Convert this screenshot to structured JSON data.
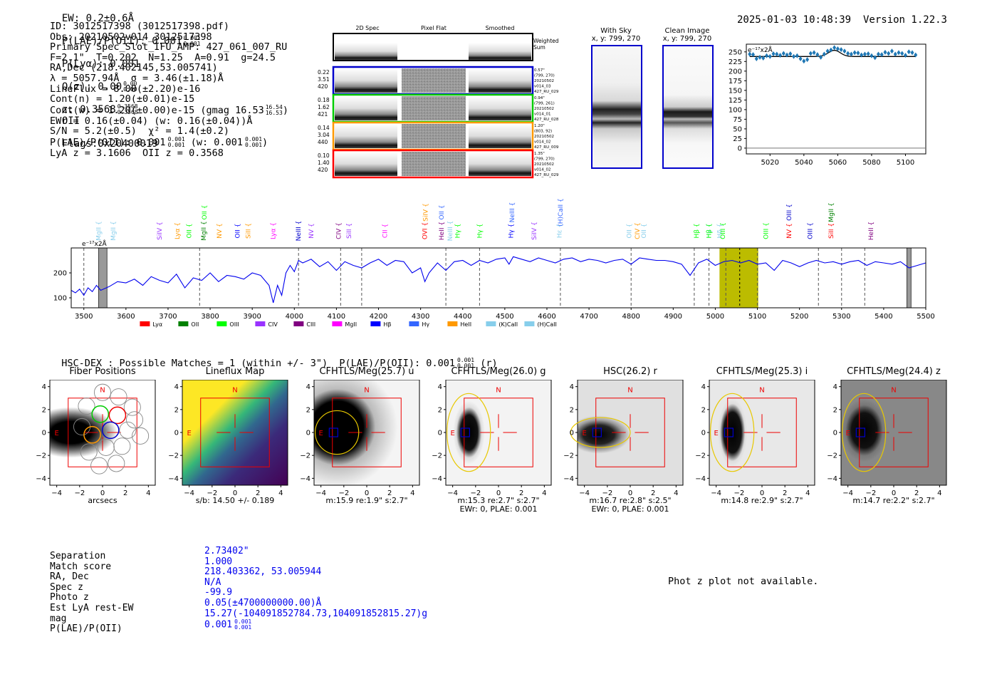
{
  "header": {
    "ew": "EW: 0.2±0.6Å",
    "plae": "P(LAE)/P(OII): 0.001",
    "plae_sup": "0.001",
    "plae_sub": "0.001",
    "plya": "P(Lyα): 0.001",
    "qz": "Q(z): 0.00",
    "qz_sup": "0.00",
    "qz_sub": "0.00",
    "z": "z: 0.3568",
    "z_sup": "0.3568",
    "z_sub": "0.3568",
    "z_line": "OII",
    "flags": "Flags:0x20400019",
    "datetime": "2025-01-03 10:48:39",
    "version": "Version 1.22.3"
  },
  "info": {
    "lines": [
      "ID: 3012517398 (3012517398.pdf)",
      "Obs: 20210502v014_3012517398",
      "Primary Spec_Slot_IFU_AMP: 427_061_007_RU",
      "F=2.1\"  T=0.202  N=1.25  A=0.91  g=24.5",
      "RA,Dec (218.402145,53.005741)",
      "λ = 5057.94Å  σ = 3.46(±1.18)Å",
      "LineFlux = 8.00(±2.20)e-16",
      "Cont(n) = 1.20(±0.01)e-15",
      "Cont(w) = 1.20(±0.00)e-15 (gmag 16.53",
      "EWr = 0.16(±0.04) (w: 0.16(±0.04))Å",
      "S/N = 5.2(±0.5)  χ² = 1.4(±0.2)",
      "P(LAE)/P(OII): 0.001",
      "LyA z = 3.1606  OII z = 0.3568"
    ],
    "gmag_sup": "16.54",
    "gmag_sub": "16.53",
    "plae_sup": "0.001",
    "plae_sub": "0.001",
    "plae_w": "(w: 0.001",
    "plae_w_sup": "0.001",
    "plae_w_sub": "0.001"
  },
  "spec2d": {
    "col_labels": [
      "2D Spec",
      "Pixel Flat",
      "Smoothed"
    ],
    "weighted_label": "Weighted\nSum",
    "fibers": [
      {
        "color": "#0000cc",
        "left": [
          "0.22",
          "3.51",
          "420"
        ],
        "right": [
          "0.57\"",
          "(799, 270)",
          "20210502",
          "v014_03",
          "427_RU_029"
        ]
      },
      {
        "color": "#00cc00",
        "left": [
          "0.18",
          "1.62",
          "421"
        ],
        "right": [
          "0.94\"",
          "(799, 261)",
          "20210502",
          "v014_01",
          "427_RU_028"
        ]
      },
      {
        "color": "#ff9900",
        "left": [
          "0.14",
          "3.04",
          "440"
        ],
        "right": [
          "1.20\"",
          "(803, 92)",
          "20210502",
          "v014_02",
          "427_RU_009"
        ]
      },
      {
        "color": "#ff0000",
        "left": [
          "0.10",
          "1.40",
          "420"
        ],
        "right": [
          "1.35\"",
          "(799, 270)",
          "20210502",
          "v014_02",
          "427_RU_029"
        ]
      }
    ]
  },
  "sky": {
    "with_sky": "With Sky",
    "with_sky_xy": "x, y: 799, 270",
    "clean": "Clean Image",
    "clean_xy": "x, y: 799, 270"
  },
  "zoom_chart": {
    "unit_label": "e⁻¹⁷x2Å",
    "x_ticks": [
      "5020",
      "5040",
      "5060",
      "5080",
      "5100"
    ],
    "y_ticks": [
      "0",
      "25",
      "50",
      "75",
      "100",
      "125",
      "150",
      "175",
      "200",
      "225",
      "250"
    ]
  },
  "full_spectrum": {
    "unit_label": "e⁻¹⁷x2Å",
    "x_ticks": [
      "3500",
      "3600",
      "3700",
      "3800",
      "3900",
      "4000",
      "4100",
      "4200",
      "4300",
      "4400",
      "4500",
      "4600",
      "4700",
      "4800",
      "4900",
      "5000",
      "5100",
      "5200",
      "5300",
      "5400",
      "5500"
    ],
    "y_ticks": [
      "100",
      "200"
    ],
    "legend": [
      {
        "label": "Lyα",
        "color": "#ff0000"
      },
      {
        "label": "OII",
        "color": "#008000"
      },
      {
        "label": "OIII",
        "color": "#00ff00"
      },
      {
        "label": "CIV",
        "color": "#9933ff"
      },
      {
        "label": "CIII",
        "color": "#800080"
      },
      {
        "label": "MgII",
        "color": "#ff00ff"
      },
      {
        "label": "Hβ",
        "color": "#0000ff"
      },
      {
        "label": "Hγ",
        "color": "#3366ff"
      },
      {
        "label": "HeII",
        "color": "#ff9900"
      },
      {
        "label": "(K)CaII",
        "color": "#87ceeb"
      },
      {
        "label": "(H)CaII",
        "color": "#87ceeb"
      }
    ],
    "line_labels": [
      {
        "t": "MgII",
        "c": "#87ceeb",
        "w": 3535
      },
      {
        "t": "MgII",
        "c": "#87ceeb",
        "w": 3570
      },
      {
        "t": "SiIV",
        "c": "#9933ff",
        "w": 3680
      },
      {
        "t": "Lyα",
        "c": "#ff9900",
        "w": 3722
      },
      {
        "t": "OII",
        "c": "#00ff00",
        "w": 3750
      },
      {
        "t": "MgII",
        "c": "#008000",
        "w": 3785
      },
      {
        "t": "OII",
        "c": "#00ff00",
        "w": 3786,
        "hi": true
      },
      {
        "t": "NV",
        "c": "#ff9900",
        "w": 3822
      },
      {
        "t": "OII",
        "c": "#0000ff",
        "w": 3865
      },
      {
        "t": "SiII",
        "c": "#ff9900",
        "w": 3890
      },
      {
        "t": "Lyα",
        "c": "#ff00ff",
        "w": 3950
      },
      {
        "t": "NeIII",
        "c": "#0000cc",
        "w": 4010
      },
      {
        "t": "NV",
        "c": "#9933ff",
        "w": 4040
      },
      {
        "t": "CIV",
        "c": "#800080",
        "w": 4105
      },
      {
        "t": "SiII",
        "c": "#9933ff",
        "w": 4130
      },
      {
        "t": "CII",
        "c": "#ff00ff",
        "w": 4215
      },
      {
        "t": "OVI",
        "c": "#ff0000",
        "w": 4310
      },
      {
        "t": "SiIV",
        "c": "#ff9900",
        "w": 4312,
        "hi": true
      },
      {
        "t": "OII",
        "c": "#3366ff",
        "w": 4350,
        "hi": true
      },
      {
        "t": "HeII",
        "c": "#800080",
        "w": 4350
      },
      {
        "t": "NeIII",
        "c": "#87ceeb",
        "w": 4370
      },
      {
        "t": "Hγ",
        "c": "#00ff00",
        "w": 4388
      },
      {
        "t": "Hγ",
        "c": "#00ff00",
        "w": 4440
      },
      {
        "t": "Hγ",
        "c": "#0000ff",
        "w": 4515
      },
      {
        "t": "NeIII",
        "c": "#3366ff",
        "w": 4517,
        "hi": true
      },
      {
        "t": "SiIV",
        "c": "#9933ff",
        "w": 4570
      },
      {
        "t": "Hε",
        "c": "#87ceeb",
        "w": 4630
      },
      {
        "t": "(H)CaII",
        "c": "#3366ff",
        "w": 4632,
        "hi": true
      },
      {
        "t": "OII",
        "c": "#87ceeb",
        "w": 4795
      },
      {
        "t": "CIV",
        "c": "#ff9900",
        "w": 4815
      },
      {
        "t": "OII",
        "c": "#87ceeb",
        "w": 4830
      },
      {
        "t": "Hβ",
        "c": "#00ff00",
        "w": 4955
      },
      {
        "t": "Hγ",
        "c": "#87ceeb",
        "w": 4985
      },
      {
        "t": "Hβ",
        "c": "#00ff00",
        "w": 4985
      },
      {
        "t": "Hδ",
        "c": "#87ceeb",
        "w": 5010
      },
      {
        "t": "OIII",
        "c": "#00ff00",
        "w": 5018
      },
      {
        "t": "OIII",
        "c": "#00ff00",
        "w": 5120
      },
      {
        "t": "NV",
        "c": "#ff0000",
        "w": 5175
      },
      {
        "t": "OIII",
        "c": "#0000cc",
        "w": 5175,
        "hi": true
      },
      {
        "t": "OIII",
        "c": "#0000cc",
        "w": 5225
      },
      {
        "t": "SiII",
        "c": "#ff0000",
        "w": 5275
      },
      {
        "t": "MgII",
        "c": "#008000",
        "w": 5275,
        "hi": true
      },
      {
        "t": "HeII",
        "c": "#800080",
        "w": 5370
      }
    ]
  },
  "hsc": {
    "title": "HSC-DEX : Possible Matches = 1 (within +/- 3\")  P(LAE)/P(OII): 0.001",
    "title_sup": "0.001",
    "title_sub": "0.001",
    "title_end": "(r)"
  },
  "cutouts": [
    {
      "title": "Fiber Positions",
      "cap1": "arcsecs",
      "cap2": ""
    },
    {
      "title": "Lineflux Map",
      "cap1": "s/b: 14.50 +/- 0.189",
      "cap2": ""
    },
    {
      "title": "CFHTLS/Meg(25.7) u",
      "cap1": "m:15.9  re:1.9\"  s:2.7\"",
      "cap2": ""
    },
    {
      "title": "CFHTLS/Meg(26.0) g",
      "cap1": "m:15.3  re:2.7\"  s:2.7\"",
      "cap2": "EWr: 0, PLAE: 0.001"
    },
    {
      "title": "HSC(26.2) r",
      "cap1": "m:16.7  re:2.8\"  s:2.5\"",
      "cap2": "EWr: 0, PLAE: 0.001"
    },
    {
      "title": "CFHTLS/Meg(25.3) i",
      "cap1": "m:14.8  re:2.9\"  s:2.7\"",
      "cap2": ""
    },
    {
      "title": "CFHTLS/Meg(24.4) z",
      "cap1": "m:14.7  re:2.2\"  s:2.7\"",
      "cap2": ""
    }
  ],
  "cut_axis": {
    "ticks": [
      "-4",
      "-2",
      "0",
      "2",
      "4"
    ],
    "n_label": "N",
    "e_label": "E"
  },
  "match": {
    "labels": [
      "Separation",
      "Match score",
      "RA, Dec",
      "Spec z",
      "Photo z",
      "Est LyA rest-EW",
      "mag",
      "P(LAE)/P(OII)"
    ],
    "values": [
      "2.73402\"",
      "1.000",
      "218.403362, 53.005944",
      "N/A",
      "-99.9",
      "0.05(±4700000000.00)Å",
      "15.27(-104091852784.73,104091852815.27)g",
      "0.001"
    ],
    "plae_sup": "0.001",
    "plae_sub": "0.001",
    "photz_msg": "Phot z plot not available."
  },
  "chart_data": [
    {
      "type": "scatter",
      "title": "",
      "xlabel": "",
      "ylabel": "e⁻¹⁷x2Å",
      "xlim": [
        5006,
        5112
      ],
      "ylim": [
        -15,
        270
      ],
      "x": [
        5008,
        5010,
        5012,
        5014,
        5016,
        5018,
        5020,
        5022,
        5024,
        5026,
        5028,
        5030,
        5032,
        5034,
        5036,
        5038,
        5040,
        5042,
        5044,
        5046,
        5048,
        5050,
        5052,
        5054,
        5056,
        5058,
        5060,
        5062,
        5064,
        5066,
        5068,
        5070,
        5072,
        5074,
        5076,
        5078,
        5080,
        5082,
        5084,
        5086,
        5088,
        5090,
        5092,
        5094,
        5096,
        5098,
        5100,
        5102,
        5104,
        5106
      ],
      "values": [
        244,
        243,
        232,
        236,
        234,
        240,
        238,
        245,
        244,
        241,
        246,
        242,
        245,
        238,
        240,
        232,
        226,
        230,
        246,
        248,
        243,
        236,
        244,
        252,
        255,
        261,
        258,
        256,
        252,
        246,
        244,
        248,
        247,
        242,
        244,
        245,
        240,
        235,
        244,
        243,
        249,
        246,
        252,
        244,
        248,
        246,
        241,
        250,
        248,
        242
      ],
      "fit": {
        "baseline": 238,
        "peak_center": 5058,
        "peak_height": 16,
        "peak_sigma": 3.5
      }
    },
    {
      "type": "line",
      "title": "",
      "xlabel": "",
      "ylabel": "e⁻¹⁷x2Å",
      "xlim": [
        3470,
        5500
      ],
      "ylim": [
        60,
        300
      ],
      "highlight_band": [
        5010,
        5102
      ],
      "highlight_line": 5058,
      "hatched": [
        [
          3535,
          3555
        ],
        [
          5455,
          5465
        ]
      ],
      "vlines": [
        3500,
        3775,
        4010,
        4110,
        4160,
        4360,
        4440,
        4632,
        4800,
        4950,
        4985,
        5025,
        5100,
        5245,
        5300,
        5355
      ],
      "x": [
        3470,
        3480,
        3490,
        3500,
        3510,
        3520,
        3530,
        3540,
        3560,
        3580,
        3600,
        3620,
        3640,
        3660,
        3680,
        3700,
        3720,
        3740,
        3760,
        3780,
        3800,
        3820,
        3840,
        3860,
        3880,
        3900,
        3920,
        3940,
        3950,
        3960,
        3970,
        3980,
        3990,
        4000,
        4010,
        4020,
        4040,
        4060,
        4080,
        4100,
        4120,
        4140,
        4160,
        4180,
        4200,
        4220,
        4240,
        4260,
        4280,
        4300,
        4310,
        4320,
        4340,
        4360,
        4380,
        4400,
        4420,
        4440,
        4460,
        4480,
        4500,
        4510,
        4520,
        4540,
        4560,
        4580,
        4600,
        4620,
        4640,
        4660,
        4680,
        4700,
        4720,
        4740,
        4760,
        4780,
        4800,
        4820,
        4840,
        4860,
        4880,
        4900,
        4920,
        4940,
        4960,
        4980,
        5000,
        5020,
        5040,
        5060,
        5080,
        5100,
        5120,
        5140,
        5160,
        5180,
        5200,
        5220,
        5240,
        5260,
        5280,
        5300,
        5320,
        5340,
        5360,
        5380,
        5400,
        5420,
        5440,
        5460,
        5480,
        5500
      ],
      "values": [
        130,
        120,
        135,
        110,
        140,
        125,
        150,
        130,
        145,
        165,
        160,
        175,
        150,
        185,
        170,
        160,
        195,
        140,
        180,
        170,
        200,
        165,
        190,
        185,
        175,
        200,
        190,
        150,
        80,
        150,
        110,
        200,
        230,
        205,
        250,
        240,
        255,
        225,
        245,
        210,
        245,
        230,
        220,
        240,
        255,
        230,
        250,
        245,
        200,
        220,
        165,
        200,
        240,
        210,
        245,
        250,
        230,
        250,
        240,
        255,
        260,
        235,
        265,
        255,
        245,
        260,
        250,
        240,
        255,
        260,
        245,
        255,
        250,
        240,
        250,
        255,
        235,
        260,
        255,
        250,
        250,
        245,
        235,
        190,
        240,
        255,
        230,
        245,
        250,
        240,
        250,
        235,
        240,
        210,
        250,
        240,
        225,
        240,
        250,
        240,
        245,
        235,
        245,
        250,
        230,
        245,
        240,
        235,
        245,
        220,
        230,
        240
      ]
    }
  ]
}
